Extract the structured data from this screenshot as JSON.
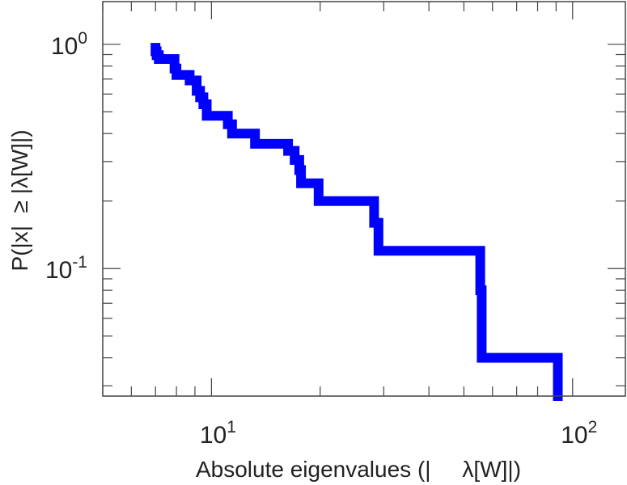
{
  "chart_data": {
    "type": "line",
    "subtype": "step-ccdf",
    "title": "",
    "xlabel": "Absolute eigenvalues (|     λ[W]|)",
    "ylabel": "P(|x|  ≥ |λ[W]|)",
    "xscale": "log",
    "yscale": "log",
    "xlim": [
      5,
      140
    ],
    "ylim": [
      0.027,
      1.55
    ],
    "grid": false,
    "legend": "none",
    "x_ticks": [
      {
        "base": "10",
        "exp": "1",
        "value": 10
      },
      {
        "base": "10",
        "exp": "2",
        "value": 100
      }
    ],
    "y_ticks": [
      {
        "base": "10",
        "exp": "0",
        "value": 1
      },
      {
        "base": "10",
        "exp": "-1",
        "value": 0.1
      }
    ],
    "series": [
      {
        "color": "#0000ff",
        "points": [
          [
            7.0,
            0.965
          ],
          [
            7.0,
            0.93
          ],
          [
            7.05,
            0.93
          ],
          [
            7.05,
            0.895
          ],
          [
            7.15,
            0.895
          ],
          [
            7.15,
            0.86
          ],
          [
            7.9,
            0.86
          ],
          [
            7.9,
            0.78
          ],
          [
            8.0,
            0.78
          ],
          [
            8.0,
            0.73
          ],
          [
            8.7,
            0.73
          ],
          [
            8.7,
            0.69
          ],
          [
            9.1,
            0.69
          ],
          [
            9.1,
            0.62
          ],
          [
            9.3,
            0.62
          ],
          [
            9.3,
            0.58
          ],
          [
            9.5,
            0.58
          ],
          [
            9.5,
            0.54
          ],
          [
            9.7,
            0.54
          ],
          [
            9.7,
            0.48
          ],
          [
            11.1,
            0.48
          ],
          [
            11.1,
            0.44
          ],
          [
            11.4,
            0.44
          ],
          [
            11.4,
            0.4
          ],
          [
            13.2,
            0.4
          ],
          [
            13.2,
            0.36
          ],
          [
            16.3,
            0.36
          ],
          [
            16.3,
            0.335
          ],
          [
            17.0,
            0.335
          ],
          [
            17.0,
            0.305
          ],
          [
            17.5,
            0.305
          ],
          [
            17.5,
            0.275
          ],
          [
            17.7,
            0.275
          ],
          [
            17.7,
            0.24
          ],
          [
            19.8,
            0.24
          ],
          [
            19.8,
            0.2
          ],
          [
            28.2,
            0.2
          ],
          [
            28.2,
            0.16
          ],
          [
            29.0,
            0.16
          ],
          [
            29.0,
            0.12
          ],
          [
            55.5,
            0.12
          ],
          [
            55.5,
            0.08
          ],
          [
            56.0,
            0.08
          ],
          [
            56.0,
            0.04
          ],
          [
            91.0,
            0.04
          ],
          [
            91.0,
            0.027
          ]
        ]
      }
    ]
  }
}
